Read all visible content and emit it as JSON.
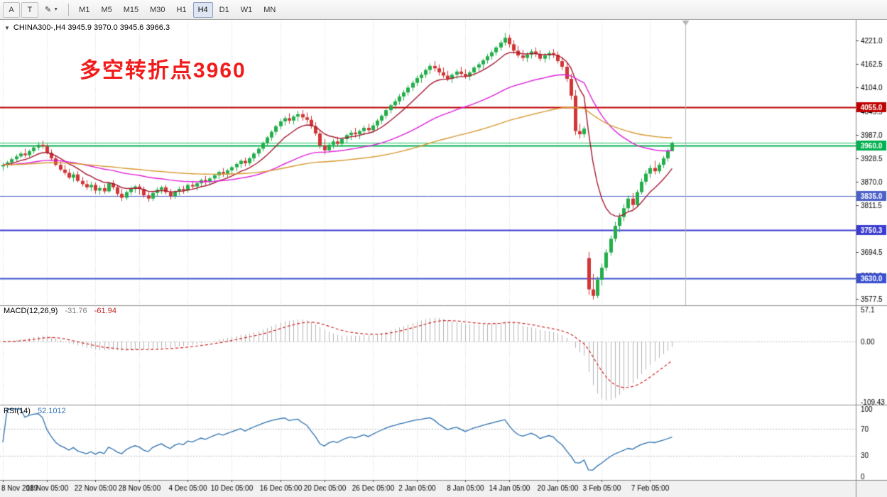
{
  "toolbar": {
    "tools": [
      {
        "label": "A"
      },
      {
        "label": "T"
      },
      {
        "label": "✎"
      }
    ],
    "timeframes": [
      {
        "label": "M1",
        "active": false
      },
      {
        "label": "M5",
        "active": false
      },
      {
        "label": "M15",
        "active": false
      },
      {
        "label": "M30",
        "active": false
      },
      {
        "label": "H1",
        "active": false
      },
      {
        "label": "H4",
        "active": true
      },
      {
        "label": "D1",
        "active": false
      },
      {
        "label": "W1",
        "active": false
      },
      {
        "label": "MN",
        "active": false
      }
    ]
  },
  "chart": {
    "symbol_line": "CHINA300-,H4 3945.9 3970.0 3945.6 3966.3",
    "annotation": {
      "text": "多空转折点3960",
      "color": "#f21b1b"
    }
  },
  "indicators": {
    "macd": {
      "label": "MACD(12,26,9)",
      "value_main": "-31.76",
      "value_signal": "-61.94",
      "axis": [
        "57.1",
        "0.00",
        "-109.43"
      ],
      "params": {
        "fast": 12,
        "slow": 26,
        "signal": 9
      }
    },
    "rsi": {
      "label": "RSI(14)",
      "value": "52.1012",
      "axis": [
        "100",
        "70",
        "30",
        "0"
      ],
      "period": 14,
      "levels": [
        70,
        30
      ]
    }
  },
  "chart_data": {
    "type": "candlestick",
    "symbol": "CHINA300-",
    "timeframe": "H4",
    "price_range": [
      3566,
      4262
    ],
    "y_ticks": [
      4221.0,
      4162.5,
      4104.0,
      4045.5,
      3987.0,
      3928.5,
      3870.0,
      3811.5,
      3753.0,
      3694.5,
      3636.0,
      3577.5
    ],
    "current_price": 3966.3,
    "current_bar": {
      "open": 3945.9,
      "high": 3970.0,
      "low": 3945.6,
      "close": 3966.3
    },
    "hlines": [
      {
        "price": 4055.0,
        "label": "4055.0",
        "color": "#c00000",
        "width": 2
      },
      {
        "price": 3960.0,
        "label": "3960.0",
        "color": "#00b050",
        "width": 2
      },
      {
        "price": 3835.0,
        "label": "3835.0",
        "color": "#4a5fc8",
        "width": 1
      },
      {
        "price": 3750.3,
        "label": "3750.3",
        "color": "#3a3ad0",
        "width": 2
      },
      {
        "price": 3630.0,
        "label": "3630.0",
        "color": "#3a50d0",
        "width": 2
      }
    ],
    "moving_averages": [
      {
        "type": "ema",
        "period": 10,
        "color": "#a51931"
      },
      {
        "type": "ema",
        "period": 45,
        "color": "#de1fd8"
      },
      {
        "type": "ema",
        "period": 110,
        "color": "#d6992e"
      }
    ],
    "colors": {
      "up": "#23ae4a",
      "down": "#d23535",
      "grid": "#d6d6d6",
      "bid_line": "#18c060",
      "macd_hist": "#b4b4b4",
      "macd_signal": "#d02020",
      "rsi": "#2a6fb0",
      "background": "#ffffff"
    },
    "time_labels": [
      {
        "index": 0,
        "label": "8 Nov 2019"
      },
      {
        "index": 10,
        "label": "18 Nov 05:00"
      },
      {
        "index": 21,
        "label": "22 Nov 05:00"
      },
      {
        "index": 31,
        "label": "28 Nov 05:00"
      },
      {
        "index": 42,
        "label": "4 Dec 05:00"
      },
      {
        "index": 52,
        "label": "10 Dec 05:00"
      },
      {
        "index": 63,
        "label": "16 Dec 05:00"
      },
      {
        "index": 73,
        "label": "20 Dec 05:00"
      },
      {
        "index": 84,
        "label": "26 Dec 05:00"
      },
      {
        "index": 94,
        "label": "2 Jan 05:00"
      },
      {
        "index": 105,
        "label": "8 Jan 05:00"
      },
      {
        "index": 115,
        "label": "14 Jan 05:00"
      },
      {
        "index": 126,
        "label": "20 Jan 05:00"
      },
      {
        "index": 136,
        "label": "3 Feb 05:00"
      },
      {
        "index": 147,
        "label": "7 Feb 05:00"
      }
    ],
    "ohlc": [
      [
        3908,
        3918,
        3898,
        3912
      ],
      [
        3912,
        3922,
        3904,
        3918
      ],
      [
        3918,
        3930,
        3910,
        3926
      ],
      [
        3926,
        3938,
        3920,
        3933
      ],
      [
        3933,
        3945,
        3928,
        3940
      ],
      [
        3940,
        3952,
        3930,
        3936
      ],
      [
        3936,
        3950,
        3928,
        3946
      ],
      [
        3946,
        3960,
        3940,
        3955
      ],
      [
        3955,
        3968,
        3948,
        3962
      ],
      [
        3962,
        3972,
        3952,
        3958
      ],
      [
        3958,
        3964,
        3938,
        3942
      ],
      [
        3942,
        3950,
        3924,
        3928
      ],
      [
        3928,
        3936,
        3908,
        3912
      ],
      [
        3912,
        3920,
        3896,
        3900
      ],
      [
        3900,
        3912,
        3886,
        3892
      ],
      [
        3892,
        3902,
        3876,
        3880
      ],
      [
        3880,
        3894,
        3870,
        3888
      ],
      [
        3888,
        3896,
        3868,
        3872
      ],
      [
        3872,
        3882,
        3858,
        3864
      ],
      [
        3864,
        3874,
        3850,
        3856
      ],
      [
        3856,
        3870,
        3846,
        3862
      ],
      [
        3862,
        3868,
        3840,
        3848
      ],
      [
        3848,
        3860,
        3838,
        3854
      ],
      [
        3854,
        3864,
        3840,
        3846
      ],
      [
        3846,
        3870,
        3842,
        3866
      ],
      [
        3866,
        3874,
        3850,
        3856
      ],
      [
        3856,
        3862,
        3834,
        3840
      ],
      [
        3840,
        3852,
        3822,
        3830
      ],
      [
        3830,
        3848,
        3824,
        3844
      ],
      [
        3844,
        3858,
        3836,
        3852
      ],
      [
        3852,
        3862,
        3842,
        3858
      ],
      [
        3858,
        3864,
        3838,
        3852
      ],
      [
        3852,
        3858,
        3830,
        3836
      ],
      [
        3836,
        3844,
        3820,
        3828
      ],
      [
        3828,
        3846,
        3822,
        3842
      ],
      [
        3842,
        3856,
        3834,
        3850
      ],
      [
        3850,
        3860,
        3840,
        3856
      ],
      [
        3856,
        3862,
        3838,
        3844
      ],
      [
        3844,
        3852,
        3826,
        3834
      ],
      [
        3834,
        3848,
        3828,
        3846
      ],
      [
        3846,
        3858,
        3836,
        3852
      ],
      [
        3852,
        3860,
        3840,
        3848
      ],
      [
        3848,
        3866,
        3842,
        3862
      ],
      [
        3862,
        3872,
        3850,
        3858
      ],
      [
        3858,
        3870,
        3848,
        3866
      ],
      [
        3866,
        3878,
        3856,
        3874
      ],
      [
        3874,
        3884,
        3862,
        3870
      ],
      [
        3870,
        3882,
        3860,
        3878
      ],
      [
        3878,
        3890,
        3868,
        3886
      ],
      [
        3886,
        3898,
        3876,
        3894
      ],
      [
        3894,
        3904,
        3882,
        3890
      ],
      [
        3890,
        3902,
        3880,
        3898
      ],
      [
        3898,
        3910,
        3888,
        3906
      ],
      [
        3906,
        3918,
        3896,
        3914
      ],
      [
        3914,
        3926,
        3904,
        3922
      ],
      [
        3922,
        3930,
        3908,
        3916
      ],
      [
        3916,
        3932,
        3910,
        3928
      ],
      [
        3928,
        3944,
        3920,
        3940
      ],
      [
        3940,
        3956,
        3932,
        3952
      ],
      [
        3952,
        3970,
        3946,
        3966
      ],
      [
        3966,
        3984,
        3958,
        3980
      ],
      [
        3980,
        3998,
        3972,
        3994
      ],
      [
        3994,
        4012,
        3986,
        4008
      ],
      [
        4008,
        4026,
        4000,
        4020
      ],
      [
        4020,
        4034,
        4010,
        4028
      ],
      [
        4028,
        4040,
        4014,
        4022
      ],
      [
        4022,
        4036,
        4012,
        4032
      ],
      [
        4032,
        4046,
        4020,
        4038
      ],
      [
        4038,
        4048,
        4022,
        4030
      ],
      [
        4030,
        4042,
        4016,
        4024
      ],
      [
        4024,
        4034,
        4002,
        4008
      ],
      [
        4008,
        4018,
        3984,
        3990
      ],
      [
        3990,
        3998,
        3952,
        3960
      ],
      [
        3960,
        3976,
        3938,
        3948
      ],
      [
        3948,
        3966,
        3942,
        3962
      ],
      [
        3962,
        3976,
        3952,
        3970
      ],
      [
        3970,
        3982,
        3958,
        3964
      ],
      [
        3964,
        3980,
        3956,
        3976
      ],
      [
        3976,
        3990,
        3966,
        3986
      ],
      [
        3986,
        3998,
        3974,
        3992
      ],
      [
        3992,
        4004,
        3980,
        3988
      ],
      [
        3988,
        4000,
        3976,
        3996
      ],
      [
        3996,
        4010,
        3986,
        4004
      ],
      [
        4004,
        4014,
        3990,
        3998
      ],
      [
        3998,
        4016,
        3992,
        4010
      ],
      [
        4010,
        4026,
        4002,
        4022
      ],
      [
        4022,
        4038,
        4014,
        4034
      ],
      [
        4034,
        4052,
        4026,
        4048
      ],
      [
        4048,
        4064,
        4040,
        4060
      ],
      [
        4060,
        4076,
        4050,
        4070
      ],
      [
        4070,
        4088,
        4062,
        4082
      ],
      [
        4082,
        4098,
        4072,
        4092
      ],
      [
        4092,
        4110,
        4084,
        4104
      ],
      [
        4104,
        4122,
        4096,
        4116
      ],
      [
        4116,
        4134,
        4108,
        4128
      ],
      [
        4128,
        4142,
        4116,
        4136
      ],
      [
        4136,
        4152,
        4128,
        4148
      ],
      [
        4148,
        4164,
        4138,
        4158
      ],
      [
        4158,
        4170,
        4144,
        4152
      ],
      [
        4152,
        4162,
        4134,
        4142
      ],
      [
        4142,
        4154,
        4128,
        4134
      ],
      [
        4134,
        4146,
        4120,
        4126
      ],
      [
        4126,
        4140,
        4116,
        4136
      ],
      [
        4136,
        4150,
        4126,
        4144
      ],
      [
        4144,
        4156,
        4132,
        4138
      ],
      [
        4138,
        4150,
        4126,
        4132
      ],
      [
        4132,
        4146,
        4122,
        4142
      ],
      [
        4142,
        4158,
        4134,
        4154
      ],
      [
        4154,
        4168,
        4144,
        4162
      ],
      [
        4162,
        4176,
        4150,
        4172
      ],
      [
        4172,
        4188,
        4164,
        4182
      ],
      [
        4182,
        4198,
        4174,
        4192
      ],
      [
        4192,
        4208,
        4184,
        4204
      ],
      [
        4204,
        4222,
        4196,
        4216
      ],
      [
        4216,
        4240,
        4208,
        4228
      ],
      [
        4228,
        4236,
        4204,
        4212
      ],
      [
        4212,
        4222,
        4188,
        4196
      ],
      [
        4196,
        4208,
        4178,
        4184
      ],
      [
        4184,
        4198,
        4170,
        4178
      ],
      [
        4178,
        4192,
        4168,
        4186
      ],
      [
        4186,
        4200,
        4176,
        4194
      ],
      [
        4194,
        4204,
        4180,
        4188
      ],
      [
        4188,
        4198,
        4170,
        4176
      ],
      [
        4176,
        4190,
        4166,
        4184
      ],
      [
        4184,
        4196,
        4174,
        4190
      ],
      [
        4190,
        4200,
        4178,
        4186
      ],
      [
        4186,
        4194,
        4164,
        4170
      ],
      [
        4170,
        4180,
        4148,
        4156
      ],
      [
        4156,
        4166,
        4118,
        4126
      ],
      [
        4126,
        4138,
        4074,
        4084
      ],
      [
        4084,
        4098,
        3986,
        3996
      ],
      [
        3996,
        4014,
        3978,
        3988
      ],
      [
        3988,
        4008,
        3980,
        4002
      ],
      [
        3680,
        3695,
        3588,
        3602
      ],
      [
        3602,
        3640,
        3577,
        3586
      ],
      [
        3586,
        3634,
        3580,
        3626
      ],
      [
        3626,
        3666,
        3612,
        3656
      ],
      [
        3656,
        3702,
        3648,
        3694
      ],
      [
        3694,
        3736,
        3686,
        3728
      ],
      [
        3728,
        3770,
        3720,
        3760
      ],
      [
        3760,
        3792,
        3744,
        3782
      ],
      [
        3782,
        3814,
        3772,
        3804
      ],
      [
        3804,
        3836,
        3796,
        3828
      ],
      [
        3828,
        3842,
        3802,
        3812
      ],
      [
        3812,
        3850,
        3806,
        3844
      ],
      [
        3844,
        3878,
        3838,
        3870
      ],
      [
        3870,
        3898,
        3862,
        3890
      ],
      [
        3890,
        3912,
        3880,
        3904
      ],
      [
        3904,
        3922,
        3888,
        3896
      ],
      [
        3896,
        3918,
        3890,
        3912
      ],
      [
        3912,
        3934,
        3904,
        3928
      ],
      [
        3928,
        3952,
        3920,
        3946
      ],
      [
        3945.9,
        3970,
        3945.6,
        3966.3
      ]
    ]
  }
}
